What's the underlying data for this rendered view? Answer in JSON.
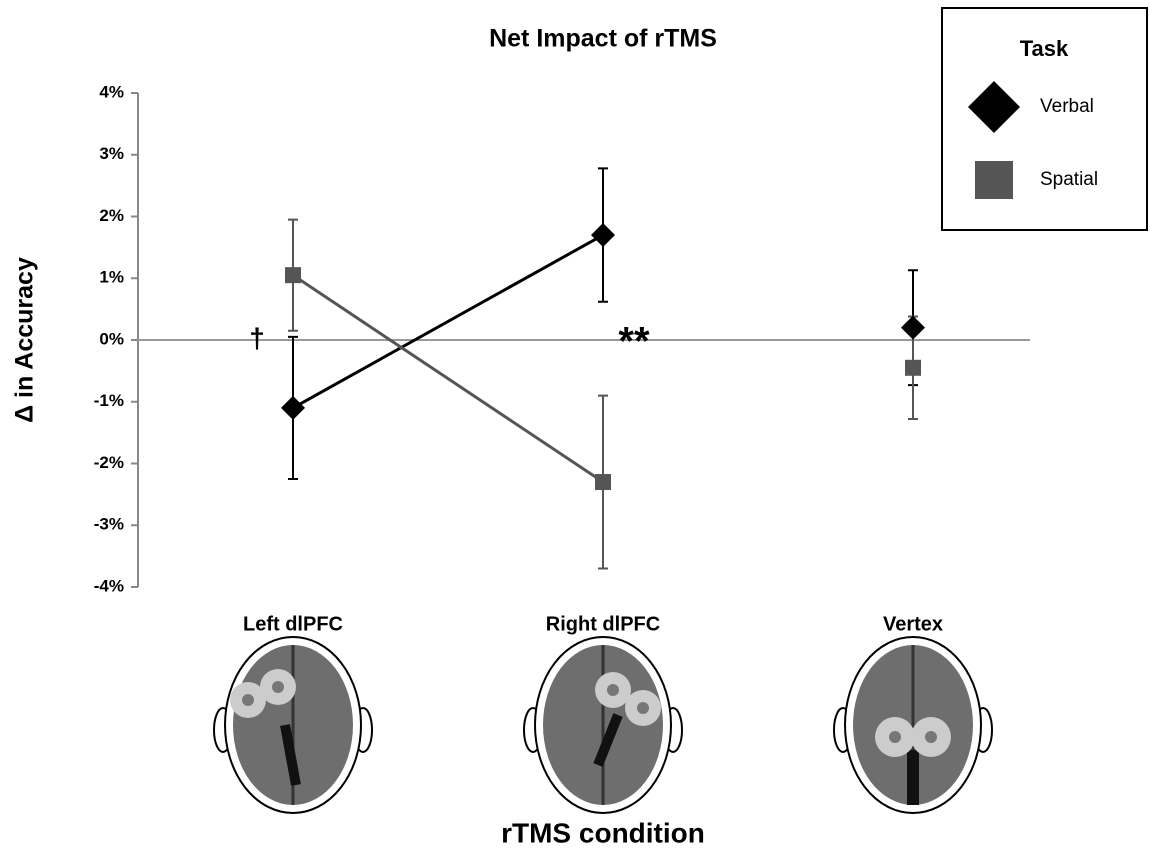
{
  "chart_data": {
    "type": "line",
    "title": "Net Impact of rTMS",
    "y_label": "Δ in Accuracy",
    "x_label": "rTMS condition",
    "categories": [
      "Left dlPFC",
      "Right dlPFC",
      "Vertex"
    ],
    "connected": [
      0,
      1
    ],
    "series": [
      {
        "name": "Verbal",
        "color": "#000000",
        "marker": "diamond",
        "values": [
          -1.1,
          1.7,
          0.2
        ],
        "errors": [
          1.15,
          1.08,
          0.93
        ]
      },
      {
        "name": "Spatial",
        "color": "#555555",
        "marker": "square",
        "values": [
          1.05,
          -2.3,
          -0.45
        ],
        "errors": [
          0.9,
          1.4,
          0.83
        ]
      }
    ],
    "ylim": [
      -4,
      4
    ],
    "yticks": [
      {
        "value": 4,
        "label": "4%"
      },
      {
        "value": 3,
        "label": "3%"
      },
      {
        "value": 2,
        "label": "2%"
      },
      {
        "value": 1,
        "label": "1%"
      },
      {
        "value": 0,
        "label": "0%"
      },
      {
        "value": -1,
        "label": "-1%"
      },
      {
        "value": -2,
        "label": "-2%"
      },
      {
        "value": -3,
        "label": "-3%"
      },
      {
        "value": -4,
        "label": "-4%"
      }
    ],
    "legend_title": "Task",
    "legend_position": "upper right",
    "annotations": [
      "†",
      "**"
    ]
  }
}
